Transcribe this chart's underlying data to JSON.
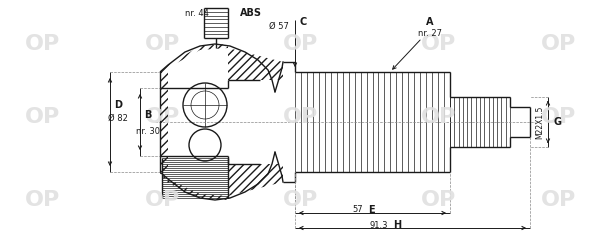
{
  "bg_color": "#ffffff",
  "line_color": "#1a1a1a",
  "wm_color": "#e0e0e0",
  "figsize": [
    6.0,
    2.44
  ],
  "dpi": 100,
  "wm_positions_axes": [
    [
      0.07,
      0.18
    ],
    [
      0.07,
      0.52
    ],
    [
      0.07,
      0.82
    ],
    [
      0.27,
      0.18
    ],
    [
      0.27,
      0.52
    ],
    [
      0.27,
      0.82
    ],
    [
      0.5,
      0.18
    ],
    [
      0.5,
      0.52
    ],
    [
      0.5,
      0.82
    ],
    [
      0.73,
      0.18
    ],
    [
      0.73,
      0.52
    ],
    [
      0.73,
      0.82
    ],
    [
      0.93,
      0.18
    ],
    [
      0.93,
      0.52
    ],
    [
      0.93,
      0.82
    ]
  ],
  "xlim": [
    0,
    600
  ],
  "ylim": [
    244,
    0
  ],
  "lw": 1.0,
  "lw_thin": 0.5,
  "lw_dim": 0.7,
  "fs": 6.5,
  "fs_bold": 7.0,
  "centerline_color": "#888888",
  "dim_color": "#1a1a1a"
}
